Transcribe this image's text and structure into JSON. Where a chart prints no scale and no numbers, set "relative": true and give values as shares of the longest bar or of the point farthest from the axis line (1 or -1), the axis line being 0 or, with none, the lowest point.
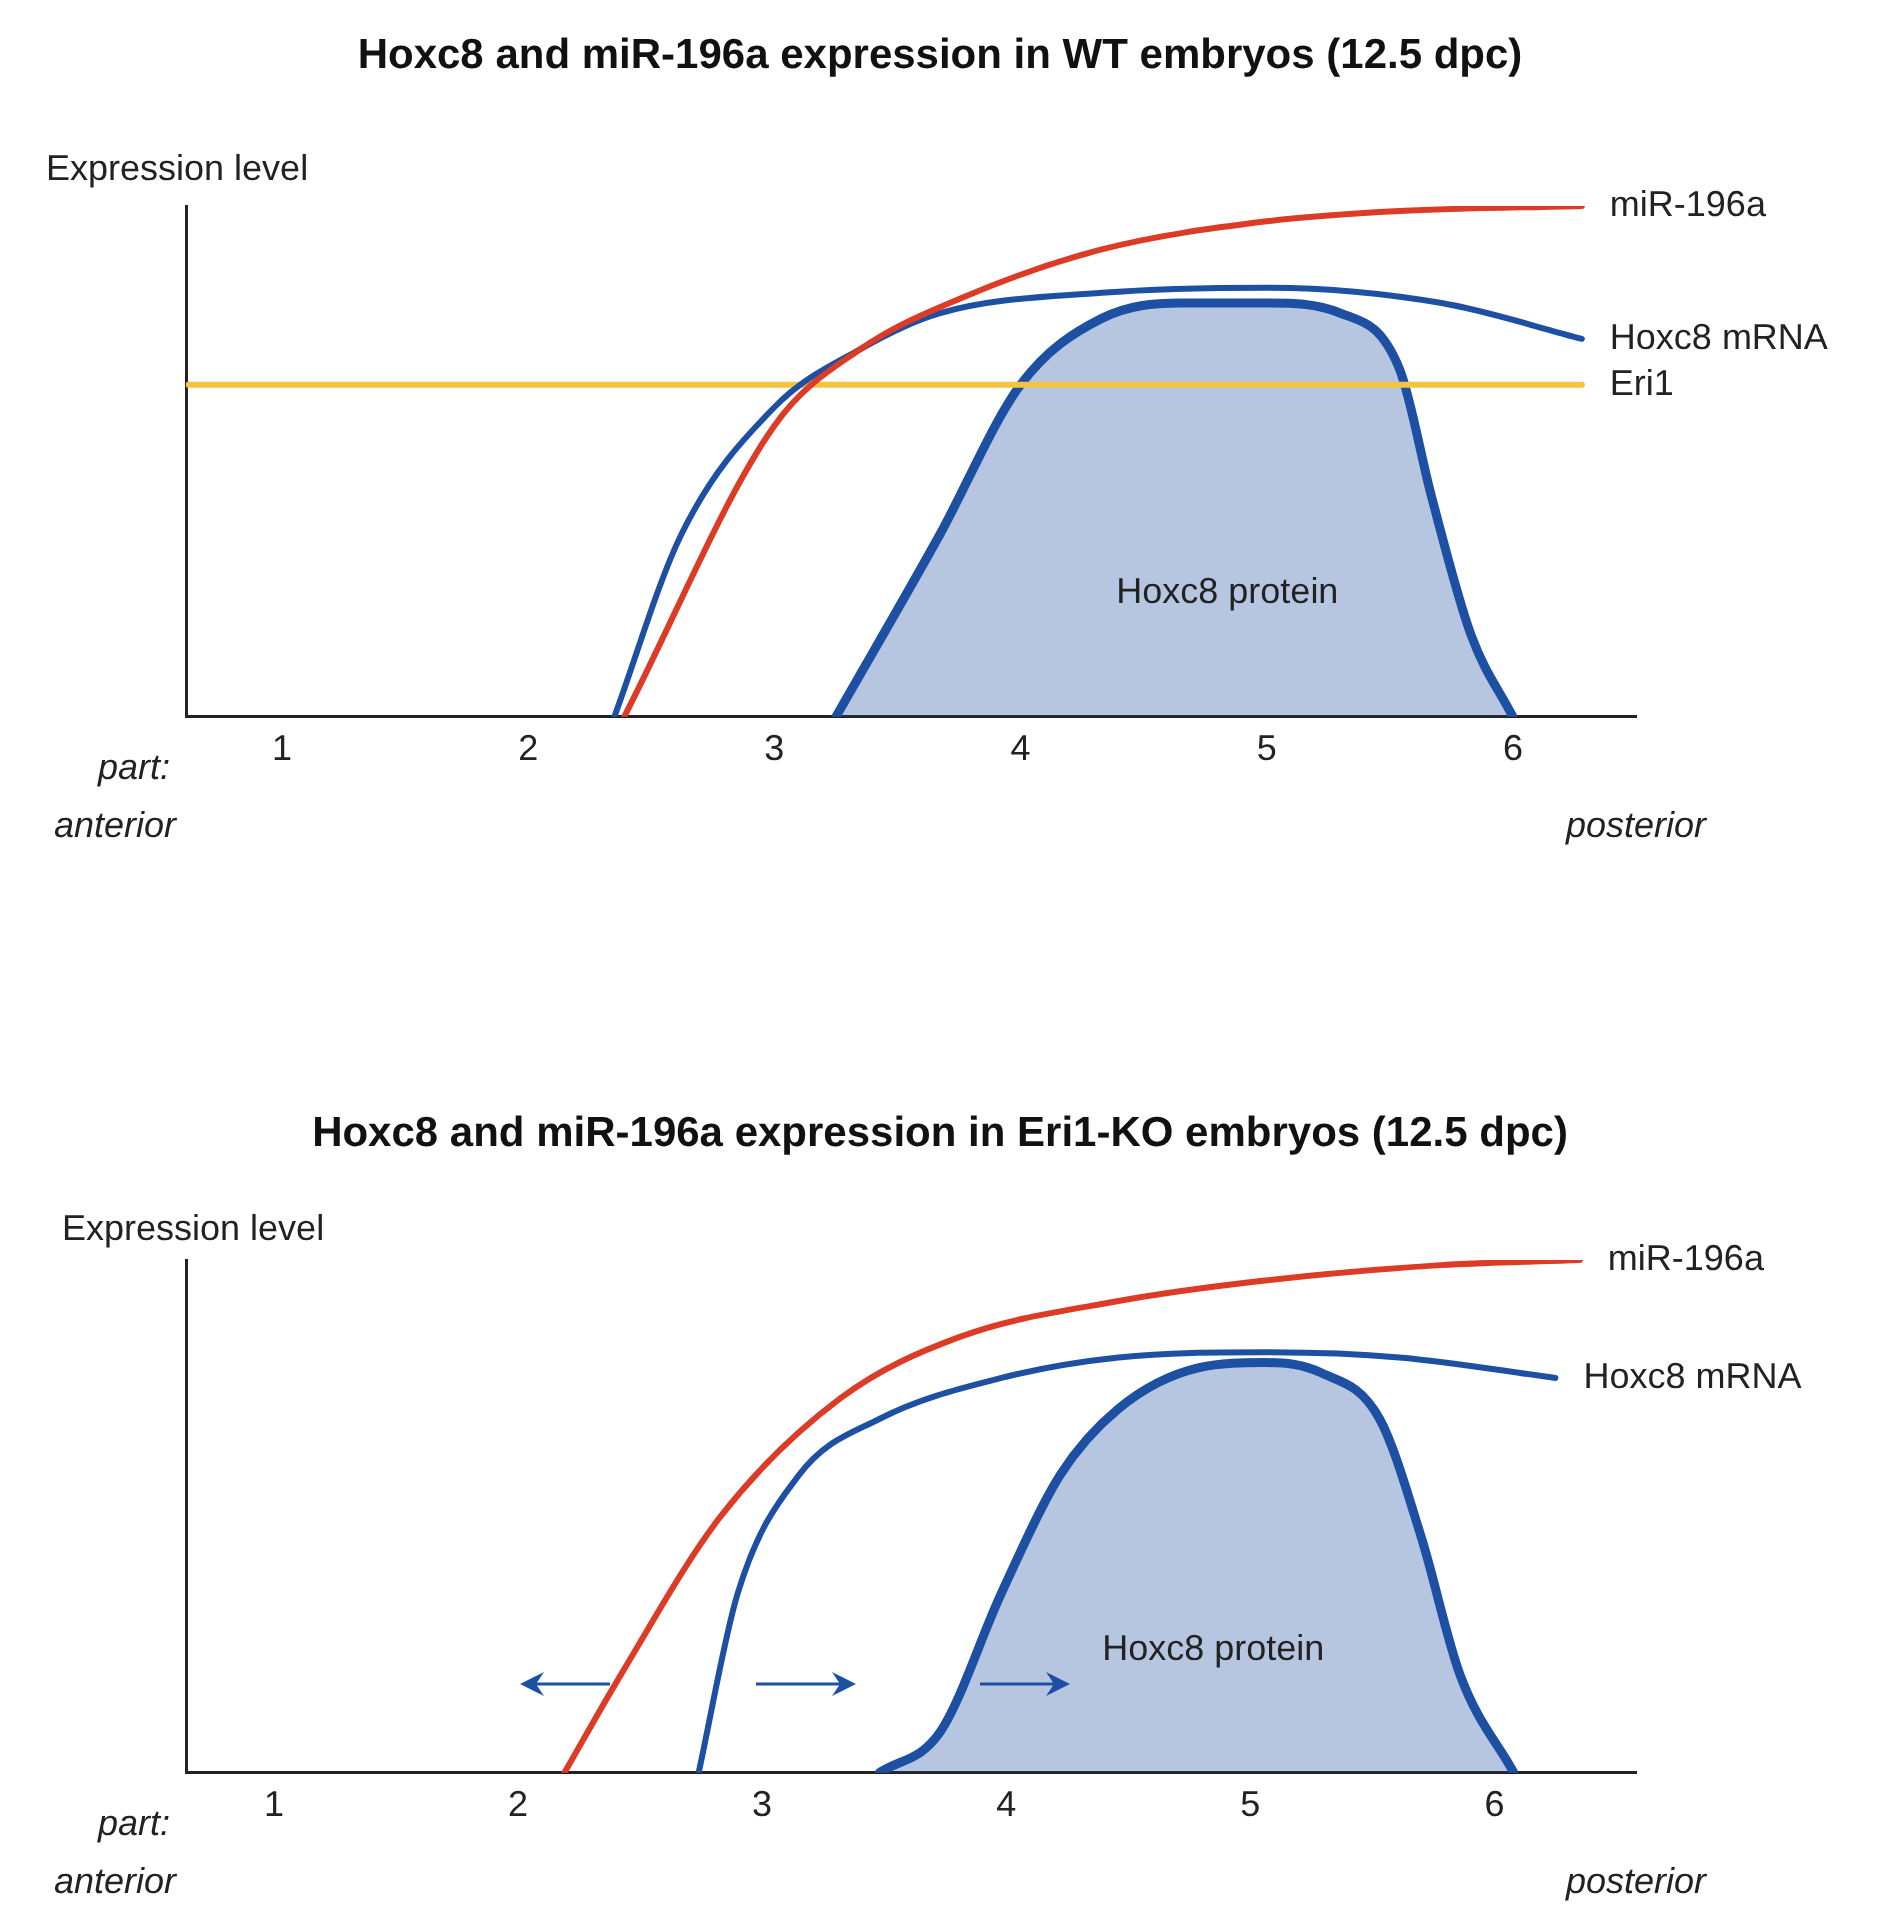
{
  "chart_data": [
    {
      "type": "line",
      "title": "Hoxc8 and miR-196a expression in WT embryos (12.5 dpc)",
      "ylabel": "Expression level",
      "relative": true,
      "xlim": [
        0.61,
        6.5
      ],
      "xticks": [
        1,
        2,
        3,
        4,
        5,
        6
      ],
      "grid": false,
      "legend": false,
      "marker": "none",
      "line_style": "solid",
      "annotations": [
        "part:",
        "anterior",
        "posterior"
      ],
      "series": [
        {
          "name": "miR-196a",
          "color": "#dc3b26",
          "x": [
            2.39,
            3.0,
            3.35,
            3.76,
            4.33,
            5.0,
            5.54,
            6.28
          ],
          "values": [
            0,
            0.57,
            0.72,
            0.82,
            0.915,
            0.97,
            0.99,
            1.0
          ]
        },
        {
          "name": "Hoxc8 mRNA",
          "color": "#1d4fa3",
          "x": [
            2.35,
            2.62,
            3.0,
            3.35,
            3.67,
            4.33,
            5.0,
            5.71,
            6.28
          ],
          "values": [
            0,
            0.355,
            0.606,
            0.72,
            0.79,
            0.83,
            0.84,
            0.81,
            0.74
          ]
        },
        {
          "name": "Eri1",
          "color": "#f5c342",
          "x": [
            0.62,
            6.28
          ],
          "values": [
            0.65,
            0.65
          ]
        },
        {
          "name": "Hoxc8 protein",
          "type": "area",
          "color": "#1d4fa3",
          "x": [
            3.25,
            3.67,
            4.0,
            4.33,
            4.65,
            5.0,
            5.3,
            5.54,
            5.67,
            5.83,
            6.0
          ],
          "values": [
            0,
            0.355,
            0.65,
            0.78,
            0.81,
            0.81,
            0.79,
            0.68,
            0.43,
            0.16,
            0
          ]
        }
      ]
    },
    {
      "type": "line",
      "title": "Hoxc8 and miR-196a expression in Eri1-KO embryos (12.5 dpc)",
      "ylabel": "Expression level",
      "relative": true,
      "xlim": [
        0.64,
        6.58
      ],
      "xticks": [
        1,
        2,
        3,
        4,
        5,
        6
      ],
      "grid": false,
      "legend": false,
      "marker": "none",
      "line_style": "solid",
      "annotations": [
        "part:",
        "anterior",
        "posterior"
      ],
      "series": [
        {
          "name": "miR-196a",
          "color": "#dc3b26",
          "x": [
            2.19,
            2.42,
            2.83,
            3.32,
            3.81,
            4.46,
            5.06,
            5.78,
            6.35
          ],
          "values": [
            0,
            0.19,
            0.5,
            0.73,
            0.85,
            0.92,
            0.96,
            0.99,
            1.0
          ]
        },
        {
          "name": "Hoxc8 mRNA",
          "color": "#1d4fa3",
          "x": [
            2.74,
            2.9,
            3.15,
            3.48,
            3.98,
            4.46,
            5.06,
            5.61,
            6.25
          ],
          "values": [
            0,
            0.35,
            0.58,
            0.69,
            0.77,
            0.81,
            0.82,
            0.81,
            0.77
          ]
        },
        {
          "name": "Hoxc8 protein",
          "type": "area",
          "color": "#1d4fa3",
          "x": [
            3.48,
            3.73,
            3.98,
            4.22,
            4.46,
            4.79,
            5.06,
            5.29,
            5.53,
            5.7,
            5.86,
            6.08
          ],
          "values": [
            0,
            0.08,
            0.35,
            0.58,
            0.71,
            0.79,
            0.8,
            0.78,
            0.69,
            0.46,
            0.19,
            0
          ]
        }
      ]
    }
  ]
}
